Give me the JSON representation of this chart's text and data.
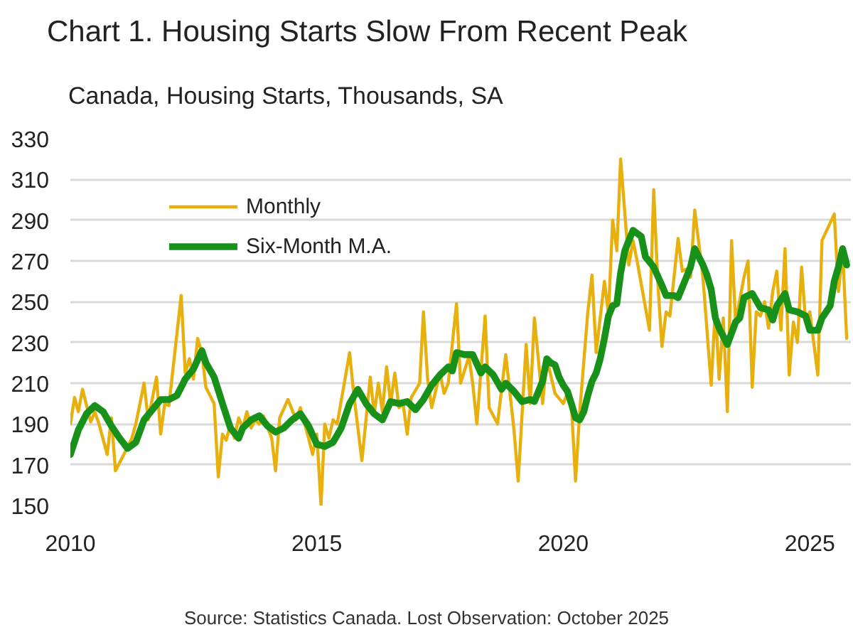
{
  "chart_data": {
    "type": "line",
    "title": "Chart 1. Housing Starts Slow From Recent Peak",
    "subtitle": "Canada, Housing Starts, Thousands, SA",
    "annotations": [
      "Source: Statistics Canada. Lost Observation: October 2025"
    ],
    "xlim": [
      "2010-01",
      "2025-11"
    ],
    "xticks": [
      "2010",
      "2015",
      "2020",
      "2025"
    ],
    "ylim": [
      150,
      330
    ],
    "yticks": [
      150,
      170,
      190,
      210,
      230,
      250,
      270,
      290,
      310,
      330
    ],
    "grid": "y",
    "legend": "top left",
    "series": [
      {
        "name": "Monthly",
        "color": "#e8b00c",
        "x": [
          "2010-01",
          "2010-02",
          "2010-03",
          "2010-04",
          "2010-06",
          "2010-07",
          "2010-08",
          "2010-10",
          "2010-11",
          "2010-12",
          "2011-02",
          "2011-04",
          "2011-05",
          "2011-07",
          "2011-08",
          "2011-10",
          "2011-11",
          "2011-12",
          "2012-01",
          "2012-04",
          "2012-05",
          "2012-06",
          "2012-07",
          "2012-08",
          "2012-09",
          "2012-10",
          "2012-12",
          "2013-01",
          "2013-02",
          "2013-03",
          "2013-04",
          "2013-05",
          "2013-06",
          "2013-07",
          "2013-08",
          "2013-09",
          "2013-10",
          "2013-11",
          "2013-12",
          "2014-02",
          "2014-03",
          "2014-04",
          "2014-06",
          "2014-08",
          "2014-09",
          "2014-11",
          "2014-12",
          "2015-01",
          "2015-02",
          "2015-03",
          "2015-04",
          "2015-05",
          "2015-06",
          "2015-09",
          "2015-10",
          "2015-12",
          "2016-02",
          "2016-03",
          "2016-04",
          "2016-05",
          "2016-06",
          "2016-07",
          "2016-08",
          "2016-09",
          "2016-10",
          "2016-11",
          "2016-12",
          "2017-02",
          "2017-03",
          "2017-04",
          "2017-05",
          "2017-07",
          "2017-08",
          "2017-09",
          "2017-11",
          "2017-12",
          "2018-02",
          "2018-03",
          "2018-04",
          "2018-06",
          "2018-07",
          "2018-09",
          "2018-10",
          "2018-11",
          "2019-01",
          "2019-02",
          "2019-04",
          "2019-05",
          "2019-06",
          "2019-08",
          "2019-09",
          "2019-11",
          "2020-01",
          "2020-02",
          "2020-03",
          "2020-04",
          "2020-05",
          "2020-07",
          "2020-08",
          "2020-09",
          "2020-11",
          "2020-12",
          "2021-01",
          "2021-02",
          "2021-03",
          "2021-05",
          "2021-06",
          "2021-07",
          "2021-10",
          "2021-11",
          "2021-12",
          "2022-01",
          "2022-02",
          "2022-03",
          "2022-05",
          "2022-06",
          "2022-07",
          "2022-08",
          "2022-09",
          "2022-11",
          "2023-01",
          "2023-02",
          "2023-03",
          "2023-04",
          "2023-05",
          "2023-06",
          "2023-07",
          "2023-09",
          "2023-10",
          "2023-11",
          "2023-12",
          "2024-01",
          "2024-02",
          "2024-03",
          "2024-04",
          "2024-05",
          "2024-06",
          "2024-07",
          "2024-08",
          "2024-09",
          "2024-10",
          "2024-11",
          "2024-12",
          "2025-01",
          "2025-03",
          "2025-04",
          "2025-07",
          "2025-08",
          "2025-09",
          "2025-10"
        ],
        "values": [
          190,
          203,
          196,
          207,
          191,
          196,
          190,
          175,
          193,
          167,
          175,
          183,
          190,
          210,
          192,
          213,
          185,
          200,
          199,
          253,
          215,
          222,
          212,
          232,
          225,
          208,
          200,
          164,
          185,
          182,
          190,
          183,
          193,
          188,
          196,
          188,
          192,
          190,
          194,
          183,
          167,
          193,
          202,
          192,
          198,
          183,
          175,
          185,
          150,
          190,
          183,
          192,
          190,
          225,
          205,
          172,
          213,
          195,
          210,
          196,
          218,
          200,
          215,
          198,
          200,
          185,
          203,
          210,
          245,
          212,
          198,
          215,
          205,
          210,
          249,
          210,
          223,
          210,
          190,
          243,
          198,
          190,
          207,
          224,
          187,
          162,
          229,
          200,
          242,
          200,
          222,
          205,
          200,
          205,
          200,
          162,
          195,
          245,
          263,
          225,
          260,
          244,
          290,
          275,
          320,
          268,
          280,
          270,
          236,
          305,
          260,
          228,
          245,
          243,
          281,
          265,
          266,
          262,
          295,
          262,
          209,
          247,
          212,
          242,
          196,
          280,
          240,
          262,
          270,
          208,
          245,
          243,
          250,
          237,
          255,
          265,
          236,
          276,
          214,
          240,
          230,
          267,
          240,
          245,
          214,
          280,
          293,
          255,
          275,
          232
        ]
      },
      {
        "name": "Six-Month M.A.",
        "color": "#17911a",
        "x": [
          "2010-01",
          "2010-03",
          "2010-05",
          "2010-07",
          "2010-09",
          "2010-11",
          "2011-01",
          "2011-03",
          "2011-05",
          "2011-07",
          "2011-09",
          "2011-11",
          "2012-01",
          "2012-03",
          "2012-05",
          "2012-07",
          "2012-09",
          "2012-10",
          "2012-12",
          "2013-02",
          "2013-04",
          "2013-06",
          "2013-07",
          "2013-09",
          "2013-11",
          "2014-01",
          "2014-03",
          "2014-05",
          "2014-07",
          "2014-09",
          "2014-11",
          "2015-01",
          "2015-03",
          "2015-05",
          "2015-07",
          "2015-09",
          "2015-11",
          "2016-01",
          "2016-03",
          "2016-05",
          "2016-07",
          "2016-09",
          "2016-11",
          "2017-01",
          "2017-03",
          "2017-05",
          "2017-07",
          "2017-09",
          "2017-10",
          "2017-11",
          "2018-01",
          "2018-03",
          "2018-05",
          "2018-06",
          "2018-08",
          "2018-10",
          "2018-11",
          "2019-01",
          "2019-03",
          "2019-05",
          "2019-06",
          "2019-08",
          "2019-09",
          "2019-10",
          "2019-11",
          "2019-12",
          "2020-01",
          "2020-02",
          "2020-03",
          "2020-04",
          "2020-05",
          "2020-06",
          "2020-07",
          "2020-08",
          "2020-09",
          "2020-10",
          "2020-11",
          "2020-12",
          "2021-01",
          "2021-02",
          "2021-03",
          "2021-04",
          "2021-05",
          "2021-06",
          "2021-08",
          "2021-09",
          "2021-11",
          "2022-01",
          "2022-02",
          "2022-04",
          "2022-05",
          "2022-07",
          "2022-08",
          "2022-09",
          "2022-11",
          "2022-12",
          "2023-01",
          "2023-02",
          "2023-03",
          "2023-05",
          "2023-07",
          "2023-08",
          "2023-09",
          "2023-11",
          "2024-01",
          "2024-03",
          "2024-04",
          "2024-05",
          "2024-07",
          "2024-08",
          "2024-10",
          "2024-12",
          "2025-01",
          "2025-03",
          "2025-04",
          "2025-06",
          "2025-07",
          "2025-08",
          "2025-09",
          "2025-10"
        ],
        "values": [
          175,
          187,
          195,
          199,
          196,
          189,
          183,
          178,
          181,
          192,
          197,
          202,
          202,
          204,
          212,
          217,
          226,
          220,
          213,
          200,
          188,
          183,
          188,
          192,
          194,
          189,
          186,
          188,
          192,
          195,
          189,
          180,
          179,
          181,
          188,
          200,
          207,
          200,
          195,
          192,
          201,
          200,
          201,
          197,
          202,
          209,
          214,
          218,
          216,
          225,
          224,
          224,
          215,
          218,
          214,
          207,
          210,
          206,
          201,
          202,
          201,
          211,
          222,
          220,
          219,
          213,
          209,
          206,
          200,
          193,
          192,
          196,
          204,
          211,
          215,
          222,
          232,
          243,
          248,
          249,
          264,
          275,
          280,
          285,
          282,
          272,
          267,
          258,
          253,
          253,
          252,
          262,
          267,
          276,
          268,
          263,
          256,
          242,
          237,
          229,
          240,
          242,
          252,
          254,
          247,
          246,
          241,
          248,
          254,
          246,
          245,
          243,
          236,
          236,
          242,
          248,
          260,
          267,
          276,
          268
        ]
      }
    ]
  }
}
